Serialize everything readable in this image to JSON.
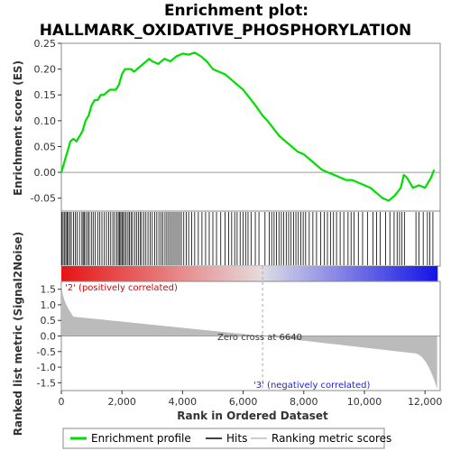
{
  "chart_data": {
    "type": "line",
    "title_line1": "Enrichment plot:",
    "title_line2": "HALLMARK_OXIDATIVE_PHOSPHORYLATION",
    "xlabel": "Rank in Ordered Dataset",
    "ylabel_top": "Enrichment score (ES)",
    "ylabel_bottom": "Ranked list metric (Signal2Noise)",
    "xlim": [
      0,
      12500
    ],
    "x_ticks": [
      0,
      2000,
      4000,
      6000,
      8000,
      10000,
      12000
    ],
    "x_tick_labels": [
      "0",
      "2,000",
      "4,000",
      "6,000",
      "8,000",
      "10,000",
      "12,000"
    ],
    "es_ylim": [
      -0.075,
      0.25
    ],
    "es_ticks": [
      0.25,
      0.2,
      0.15,
      0.1,
      0.05,
      0.0,
      -0.05
    ],
    "es_tick_labels": [
      "0.25",
      "0.20",
      "0.15",
      "0.10",
      "0.05",
      "0.00",
      "-0.05"
    ],
    "metric_ylim": [
      -1.75,
      1.75
    ],
    "metric_ticks": [
      1.5,
      1.0,
      0.5,
      0.0,
      -0.5,
      -1.0,
      -1.5
    ],
    "metric_tick_labels": [
      "1.5",
      "1.0",
      "0.5",
      "0.0",
      "-0.5",
      "-1.0",
      "-1.5"
    ],
    "n_genes": 12400,
    "zero_cross": 6640,
    "zero_cross_label": "Zero cross at 6640",
    "pos_label": "'2' (positively correlated)",
    "neg_label": "'3' (negatively correlated)",
    "legend": [
      "Enrichment profile",
      "Hits",
      "Ranking metric scores"
    ],
    "colors": {
      "es_line": "#00dd00",
      "hits": "#000000",
      "metric_fill": "#bbbbbb",
      "pos_text": "#dd0000",
      "neg_text": "#2222dd",
      "zero_line": "#aaaaaa"
    },
    "es_profile": {
      "x": [
        0,
        100,
        200,
        300,
        400,
        500,
        600,
        700,
        800,
        900,
        1000,
        1100,
        1200,
        1300,
        1400,
        1500,
        1600,
        1700,
        1800,
        1900,
        2000,
        2100,
        2200,
        2300,
        2400,
        2500,
        2600,
        2700,
        2800,
        2900,
        3000,
        3200,
        3400,
        3600,
        3800,
        4000,
        4200,
        4400,
        4600,
        4800,
        5000,
        5200,
        5400,
        5600,
        5800,
        6000,
        6200,
        6400,
        6640,
        6800,
        7000,
        7200,
        7400,
        7600,
        7800,
        8000,
        8200,
        8400,
        8600,
        8800,
        9000,
        9200,
        9400,
        9600,
        9800,
        10000,
        10200,
        10400,
        10600,
        10800,
        11000,
        11200,
        11300,
        11400,
        11600,
        11800,
        12000,
        12100,
        12200,
        12300
      ],
      "y": [
        0.0,
        0.02,
        0.04,
        0.06,
        0.065,
        0.06,
        0.07,
        0.08,
        0.1,
        0.11,
        0.13,
        0.14,
        0.14,
        0.15,
        0.15,
        0.155,
        0.16,
        0.16,
        0.16,
        0.17,
        0.19,
        0.2,
        0.2,
        0.2,
        0.195,
        0.2,
        0.205,
        0.21,
        0.215,
        0.22,
        0.215,
        0.21,
        0.22,
        0.215,
        0.225,
        0.23,
        0.228,
        0.232,
        0.225,
        0.215,
        0.2,
        0.195,
        0.19,
        0.18,
        0.17,
        0.16,
        0.145,
        0.13,
        0.11,
        0.1,
        0.085,
        0.07,
        0.06,
        0.05,
        0.04,
        0.035,
        0.025,
        0.015,
        0.005,
        0.0,
        -0.005,
        -0.01,
        -0.015,
        -0.015,
        -0.02,
        -0.025,
        -0.03,
        -0.04,
        -0.05,
        -0.055,
        -0.045,
        -0.03,
        -0.005,
        -0.01,
        -0.03,
        -0.025,
        -0.03,
        -0.02,
        -0.01,
        0.005
      ]
    },
    "hits": [
      20,
      60,
      110,
      150,
      190,
      230,
      280,
      330,
      400,
      460,
      520,
      600,
      680,
      720,
      760,
      810,
      870,
      920,
      990,
      1050,
      1120,
      1200,
      1270,
      1340,
      1420,
      1490,
      1560,
      1630,
      1700,
      1760,
      1830,
      1880,
      1920,
      1960,
      2000,
      2040,
      2090,
      2140,
      2200,
      2250,
      2300,
      2350,
      2420,
      2480,
      2540,
      2600,
      2650,
      2720,
      2790,
      2860,
      2930,
      3000,
      3080,
      3150,
      3220,
      3290,
      3350,
      3420,
      3480,
      3540,
      3600,
      3660,
      3720,
      3780,
      3840,
      3900,
      3960,
      4040,
      4120,
      4200,
      4300,
      4400,
      4520,
      4640,
      4760,
      4880,
      5000,
      5120,
      5260,
      5400,
      5520,
      5620,
      5720,
      5800,
      5900,
      6000,
      6080,
      6160,
      6260,
      6400,
      6520,
      6720,
      6860,
      6940,
      7020,
      7100,
      7180,
      7260,
      7340,
      7420,
      7500,
      7580,
      7660,
      7740,
      7820,
      7900,
      7980,
      8060,
      8180,
      8300,
      8420,
      8560,
      8680,
      8780,
      8880,
      8980,
      9080,
      9200,
      9320,
      9460,
      9560,
      9660,
      9800,
      9940,
      10100,
      10280,
      10400,
      10520,
      10700,
      10840,
      10980,
      11080,
      11160,
      11240,
      11320,
      11700,
      11800,
      11940,
      12080,
      12160,
      12260
    ]
  }
}
